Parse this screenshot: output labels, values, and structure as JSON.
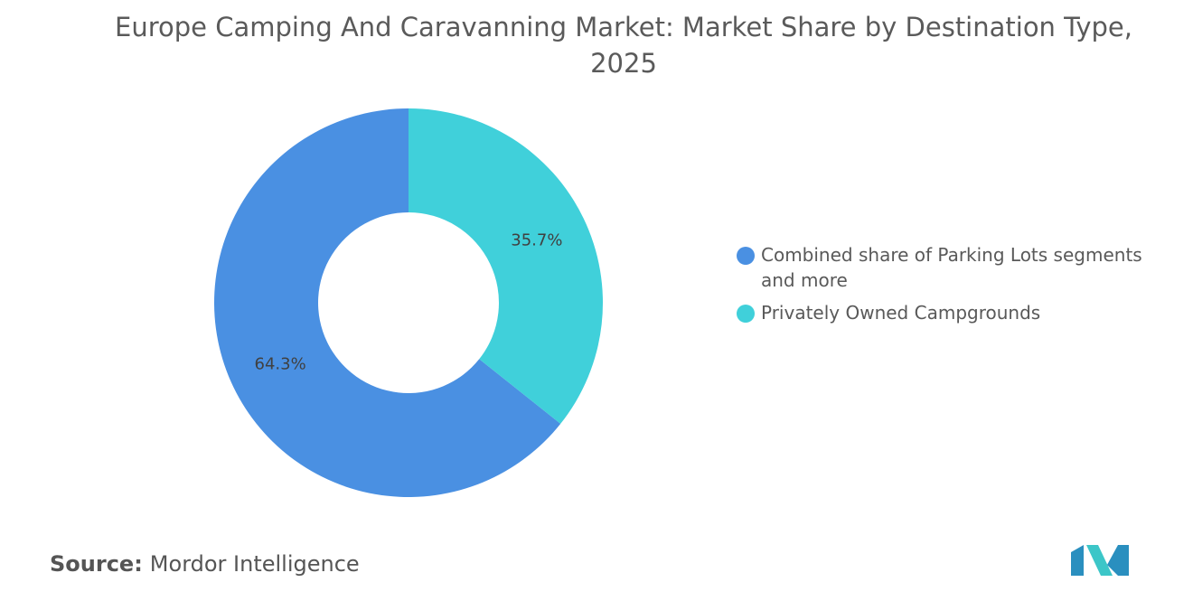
{
  "chart_data": {
    "type": "donut",
    "title": "Europe Camping And Caravanning Market: Market Share by Destination Type, 2025",
    "categories": [
      "Combined share of Parking Lots segments and more",
      "Privately Owned Campgrounds"
    ],
    "values": [
      64.3,
      35.7
    ],
    "value_labels": [
      "64.3%",
      "35.7%"
    ],
    "colors": [
      "#4a90e2",
      "#40d0da"
    ],
    "source_label": "Source:",
    "source": "Mordor Intelligence"
  }
}
